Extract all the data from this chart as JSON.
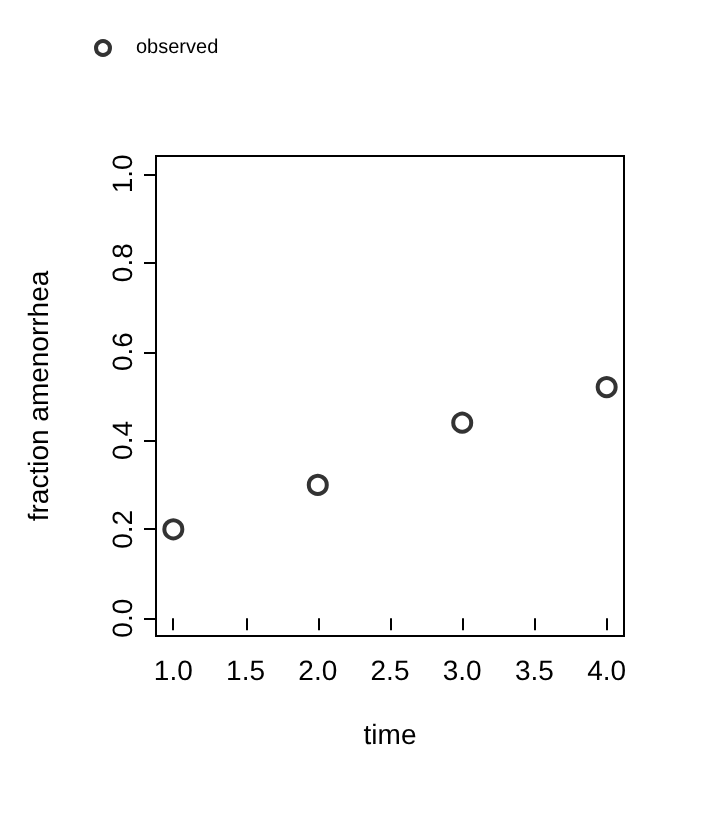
{
  "chart_data": {
    "type": "scatter",
    "xlabel": "time",
    "ylabel": "fraction amenorrhea",
    "x": [
      1,
      2,
      3,
      4
    ],
    "series": [
      {
        "name": "observed",
        "color": "#000000",
        "values": [
          0.2,
          0.3,
          0.44,
          0.52
        ]
      }
    ],
    "xlim": [
      0.88,
      4.12
    ],
    "xticks": [
      {
        "value": 1,
        "label": "1.0"
      },
      {
        "value": 1.5,
        "label": "1.5"
      },
      {
        "value": 2,
        "label": "2.0"
      },
      {
        "value": 2.5,
        "label": "2.5"
      },
      {
        "value": 3,
        "label": "3.0"
      },
      {
        "value": 3.5,
        "label": "3.5"
      },
      {
        "value": 4,
        "label": "4.0"
      }
    ],
    "ylim": [
      -0.04,
      1.04
    ],
    "yticks": [
      {
        "value": 0,
        "label": "0.0"
      },
      {
        "value": 0.2,
        "label": "0.2"
      },
      {
        "value": 0.4,
        "label": "0.4"
      },
      {
        "value": 0.6,
        "label": "0.6"
      },
      {
        "value": 0.8,
        "label": "0.8"
      },
      {
        "value": 1,
        "label": "1.0"
      }
    ],
    "grid": false,
    "legend": "top left",
    "marker": "circle"
  }
}
